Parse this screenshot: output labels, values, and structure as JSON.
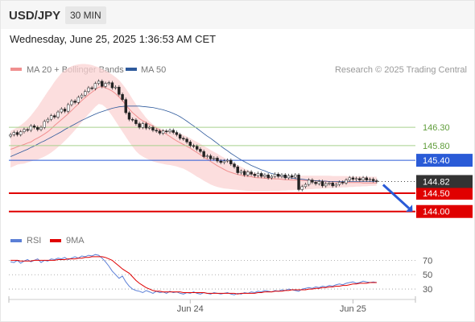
{
  "header": {
    "symbol": "USD/JPY",
    "timeframe": "30 MIN",
    "datetime": "Wednesday, June 25, 2025 1:36:53 AM CET"
  },
  "chart_data": [
    {
      "type": "candlestick",
      "title": "USD/JPY",
      "legend": [
        {
          "name": "MA 20 + Bollinger Bands",
          "color": "#f08f8f"
        },
        {
          "name": "MA 50",
          "color": "#2e5a9c"
        }
      ],
      "credit": "Research © 2025 Trading Central",
      "ylim": [
        143.4,
        147.8
      ],
      "x_ticks": [
        {
          "label": "Jun 24",
          "index": 53
        },
        {
          "label": "Jun 25",
          "index": 101
        }
      ],
      "last_price": 144.82,
      "levels": [
        {
          "value": 146.3,
          "label": "146.30",
          "type": "resistance"
        },
        {
          "value": 145.8,
          "label": "145.80",
          "type": "resistance"
        },
        {
          "value": 145.4,
          "label": "145.40",
          "type": "pivot"
        },
        {
          "value": 144.5,
          "label": "144.50",
          "type": "support"
        },
        {
          "value": 144.0,
          "label": "144.00",
          "type": "support"
        }
      ],
      "close": [
        146.1,
        146.16,
        146.1,
        146.18,
        146.24,
        146.22,
        146.34,
        146.3,
        146.24,
        146.3,
        146.46,
        146.52,
        146.62,
        146.58,
        146.72,
        146.8,
        146.74,
        146.92,
        147.02,
        146.98,
        147.12,
        147.18,
        147.28,
        147.38,
        147.36,
        147.5,
        147.56,
        147.42,
        147.5,
        147.52,
        147.38,
        147.4,
        147.2,
        147.06,
        146.7,
        146.52,
        146.5,
        146.4,
        146.3,
        146.4,
        146.28,
        146.3,
        146.22,
        146.2,
        146.14,
        146.2,
        146.18,
        146.22,
        146.16,
        146.1,
        146.0,
        145.98,
        145.9,
        145.8,
        145.78,
        145.7,
        145.64,
        145.5,
        145.52,
        145.44,
        145.46,
        145.38,
        145.34,
        145.38,
        145.4,
        145.3,
        145.22,
        145.06,
        145.1,
        145.0,
        145.08,
        145.02,
        144.98,
        145.04,
        144.96,
        145.0,
        144.92,
        144.96,
        145.02,
        144.96,
        145.0,
        144.92,
        144.98,
        144.94,
        145.0,
        144.6,
        144.68,
        144.74,
        144.86,
        144.8,
        144.76,
        144.82,
        144.7,
        144.76,
        144.78,
        144.7,
        144.74,
        144.8,
        144.78,
        144.86,
        144.92,
        144.88,
        144.9,
        144.86,
        144.92,
        144.86,
        144.88,
        144.84,
        144.82
      ],
      "ma20_bollinger_bands": {
        "mid": [
          145.7,
          145.73,
          145.77,
          145.8,
          145.83,
          145.87,
          145.9,
          145.96,
          146.01,
          146.06,
          146.12,
          146.18,
          146.26,
          146.35,
          146.43,
          146.51,
          146.59,
          146.67,
          146.76,
          146.85,
          146.94,
          147.03,
          147.11,
          147.19,
          147.26,
          147.33,
          147.4,
          147.41,
          147.38,
          147.34,
          147.29,
          147.22,
          147.13,
          147.03,
          146.91,
          146.8,
          146.7,
          146.62,
          146.54,
          146.48,
          146.43,
          146.38,
          146.33,
          146.28,
          146.22,
          146.17,
          146.11,
          146.05,
          145.99,
          145.93,
          145.88,
          145.83,
          145.78,
          145.73,
          145.67,
          145.61,
          145.55,
          145.49,
          145.43,
          145.37,
          145.31,
          145.25,
          145.2,
          145.15,
          145.1,
          145.07,
          145.04,
          145.01,
          144.99,
          144.97,
          144.96,
          144.95,
          144.93,
          144.92,
          144.92,
          144.91,
          144.9,
          144.9,
          144.89,
          144.89,
          144.88,
          144.87,
          144.87,
          144.86,
          144.86,
          144.86,
          144.85,
          144.85,
          144.84,
          144.84,
          144.84,
          144.83,
          144.83,
          144.82,
          144.82,
          144.81,
          144.81,
          144.8,
          144.8,
          144.8,
          144.79,
          144.79,
          144.79,
          144.79,
          144.78,
          144.78,
          144.78,
          144.78,
          144.78
        ],
        "upper": [
          146.2,
          146.25,
          146.3,
          146.36,
          146.43,
          146.52,
          146.62,
          146.74,
          146.86,
          147.0,
          147.14,
          147.28,
          147.41,
          147.55,
          147.67,
          147.78,
          147.86,
          147.92,
          147.97,
          148.0,
          148.02,
          148.03,
          148.03,
          148.02,
          148.0,
          147.97,
          147.94,
          147.9,
          147.85,
          147.8,
          147.74,
          147.67,
          147.59,
          147.48,
          147.36,
          147.22,
          147.07,
          146.93,
          146.8,
          146.68,
          146.56,
          146.46,
          146.38,
          146.32,
          146.28,
          146.24,
          146.22,
          146.2,
          146.18,
          146.16,
          146.13,
          146.09,
          146.05,
          146.0,
          145.95,
          145.9,
          145.85,
          145.79,
          145.74,
          145.68,
          145.63,
          145.58,
          145.52,
          145.47,
          145.42,
          145.37,
          145.32,
          145.27,
          145.22,
          145.17,
          145.13,
          145.09,
          145.05,
          145.02,
          145.0,
          144.99,
          144.98,
          144.97,
          144.97,
          144.97,
          144.97,
          144.97,
          144.97,
          144.97,
          144.97,
          144.97,
          144.98,
          144.98,
          144.98,
          144.98,
          144.98,
          144.98,
          144.98,
          144.98,
          144.98,
          144.97,
          144.97,
          144.97,
          144.97,
          144.97,
          144.96,
          144.96,
          144.96,
          144.96,
          144.95,
          144.95,
          144.95,
          144.95,
          144.95
        ],
        "lower": [
          145.2,
          145.24,
          145.28,
          145.3,
          145.31,
          145.34,
          145.37,
          145.4,
          145.42,
          145.46,
          145.5,
          145.55,
          145.61,
          145.68,
          145.76,
          145.84,
          145.93,
          146.02,
          146.12,
          146.22,
          146.33,
          146.44,
          146.55,
          146.66,
          146.76,
          146.86,
          146.94,
          146.92,
          146.85,
          146.74,
          146.61,
          146.47,
          146.32,
          146.18,
          146.04,
          145.9,
          145.77,
          145.65,
          145.56,
          145.5,
          145.45,
          145.41,
          145.37,
          145.34,
          145.32,
          145.3,
          145.28,
          145.27,
          145.25,
          145.23,
          145.2,
          145.17,
          145.12,
          145.07,
          145.01,
          144.95,
          144.9,
          144.84,
          144.79,
          144.74,
          144.7,
          144.67,
          144.65,
          144.63,
          144.62,
          144.61,
          144.6,
          144.59,
          144.58,
          144.57,
          144.56,
          144.56,
          144.55,
          144.55,
          144.55,
          144.55,
          144.55,
          144.56,
          144.56,
          144.56,
          144.57,
          144.57,
          144.58,
          144.58,
          144.59,
          144.59,
          144.6,
          144.6,
          144.61,
          144.61,
          144.62,
          144.62,
          144.63,
          144.63,
          144.64,
          144.64,
          144.65,
          144.65,
          144.66,
          144.66,
          144.67,
          144.67,
          144.68,
          144.68,
          144.69,
          144.69,
          144.7,
          144.7,
          144.71
        ]
      },
      "ma50": [
        145.5,
        145.54,
        145.58,
        145.62,
        145.66,
        145.7,
        145.75,
        145.79,
        145.84,
        145.89,
        145.93,
        145.98,
        146.03,
        146.08,
        146.13,
        146.18,
        146.24,
        146.29,
        146.34,
        146.39,
        146.44,
        146.49,
        146.53,
        146.58,
        146.62,
        146.66,
        146.7,
        146.73,
        146.76,
        146.79,
        146.82,
        146.84,
        146.86,
        146.87,
        146.88,
        146.88,
        146.88,
        146.88,
        146.88,
        146.87,
        146.86,
        146.85,
        146.84,
        146.82,
        146.8,
        146.78,
        146.75,
        146.72,
        146.68,
        146.64,
        146.59,
        146.53,
        146.47,
        146.4,
        146.34,
        146.27,
        146.2,
        146.13,
        146.06,
        146.0,
        145.93,
        145.86,
        145.79,
        145.72,
        145.66,
        145.59,
        145.53,
        145.47,
        145.41,
        145.36,
        145.31,
        145.26,
        145.22,
        145.18,
        145.14,
        145.11,
        145.07,
        145.04,
        145.02,
        144.99,
        144.97,
        144.95,
        144.93,
        144.91,
        144.9,
        144.89,
        144.88,
        144.87,
        144.86,
        144.85,
        144.84,
        144.84,
        144.83,
        144.83,
        144.82,
        144.82,
        144.82,
        144.82,
        144.82,
        144.82,
        144.82,
        144.82,
        144.82,
        144.82,
        144.82,
        144.82,
        144.82,
        144.82,
        144.82
      ],
      "projection": {
        "from": 144.82,
        "to": 144.0
      }
    },
    {
      "type": "line",
      "title": "RSI",
      "legend": [
        {
          "name": "RSI",
          "color": "#5b7fd6"
        },
        {
          "name": "9MA",
          "color": "#e00000"
        }
      ],
      "ylim": [
        20,
        85
      ],
      "y_ticks": [
        70,
        50,
        30
      ],
      "rsi": [
        68,
        67,
        70,
        66,
        69,
        71,
        68,
        70,
        72,
        67,
        70,
        69,
        72,
        71,
        73,
        72,
        74,
        71,
        73,
        75,
        73,
        76,
        75,
        77,
        76,
        78,
        77,
        73,
        68,
        62,
        55,
        50,
        45,
        48,
        40,
        34,
        30,
        28,
        27,
        25,
        28,
        26,
        24,
        27,
        25,
        26,
        24,
        27,
        25,
        26,
        24,
        23,
        25,
        24,
        26,
        24,
        23,
        25,
        24,
        23,
        25,
        24,
        23,
        24,
        25,
        23,
        22,
        24,
        23,
        25,
        24,
        26,
        25,
        27,
        26,
        28,
        27,
        26,
        28,
        27,
        29,
        28,
        30,
        29,
        28,
        27,
        30,
        31,
        32,
        31,
        33,
        32,
        34,
        33,
        35,
        34,
        36,
        37,
        36,
        38,
        39,
        40,
        38,
        39,
        41,
        40,
        39,
        40,
        39
      ],
      "ma9": [
        70,
        70,
        70,
        69,
        69,
        69,
        69,
        70,
        70,
        70,
        70,
        70,
        70,
        70,
        71,
        71,
        71,
        72,
        72,
        72,
        73,
        73,
        74,
        74,
        75,
        75,
        75,
        75,
        74,
        72,
        70,
        66,
        62,
        58,
        55,
        52,
        47,
        42,
        38,
        35,
        32,
        30,
        28,
        27,
        27,
        26,
        26,
        26,
        26,
        26,
        26,
        25,
        25,
        25,
        25,
        25,
        25,
        25,
        24,
        24,
        24,
        24,
        24,
        24,
        24,
        24,
        24,
        23,
        24,
        24,
        24,
        24,
        24,
        25,
        25,
        26,
        26,
        26,
        27,
        27,
        27,
        28,
        28,
        29,
        29,
        29,
        29,
        29,
        30,
        30,
        31,
        31,
        32,
        32,
        33,
        33,
        34,
        34,
        35,
        35,
        36,
        37,
        37,
        38,
        38,
        38,
        39,
        39,
        39
      ]
    }
  ]
}
